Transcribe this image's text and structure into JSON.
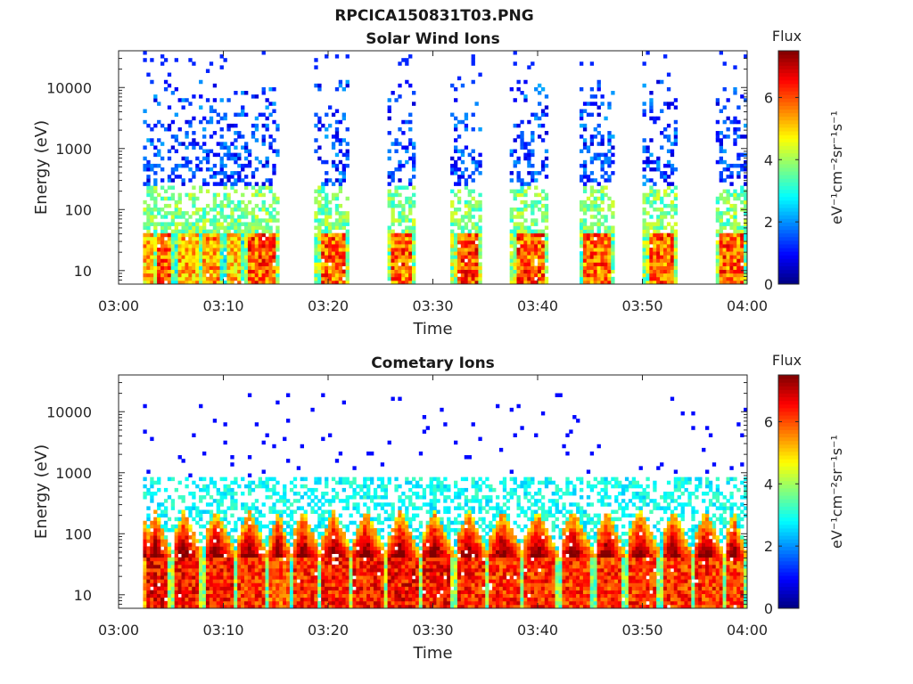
{
  "figure": {
    "title": "RPCICA150831T03.PNG"
  },
  "chart_data": [
    {
      "type": "heatmap",
      "title": "Solar Wind Ions",
      "xlabel": "Time",
      "ylabel": "Energy (eV)",
      "x_range": [
        "03:00",
        "04:00"
      ],
      "xticks": [
        "03:00",
        "03:10",
        "03:20",
        "03:30",
        "03:40",
        "03:50",
        "04:00"
      ],
      "y_scale": "log",
      "y_range": [
        6,
        40000
      ],
      "yticks": [
        10,
        100,
        1000,
        10000
      ],
      "ytick_labels": [
        "10",
        "100",
        "1000",
        "10000"
      ],
      "colorbar": {
        "title": "Flux",
        "label": "eV⁻¹cm⁻²sr⁻¹s⁻¹",
        "range": [
          0,
          7.5
        ],
        "ticks": [
          0,
          2,
          4,
          6
        ],
        "colormap": "jet"
      },
      "data_gaps_minutes": [
        [
          15.2,
          18.8
        ],
        [
          22.0,
          25.5
        ],
        [
          28.4,
          31.8
        ],
        [
          34.8,
          37.4
        ],
        [
          41.0,
          44.0
        ],
        [
          47.3,
          50.0
        ],
        [
          53.5,
          57.0
        ]
      ],
      "bursts": [
        {
          "t": [
            3.5,
            5.3
          ],
          "peak": 6.8
        },
        {
          "t": [
            5.3,
            7.8
          ],
          "peak": 6.2
        },
        {
          "t": [
            7.8,
            10.0
          ],
          "peak": 6.4
        },
        {
          "t": [
            10.0,
            12.0
          ],
          "peak": 6.0
        },
        {
          "t": [
            12.0,
            15.2
          ],
          "peak": 7.0
        },
        {
          "t": [
            18.8,
            22.0
          ],
          "peak": 6.9
        },
        {
          "t": [
            25.5,
            28.4
          ],
          "peak": 6.9
        },
        {
          "t": [
            31.8,
            34.8
          ],
          "peak": 7.1
        },
        {
          "t": [
            37.4,
            41.0
          ],
          "peak": 7.0
        },
        {
          "t": [
            44.0,
            47.3
          ],
          "peak": 6.8
        },
        {
          "t": [
            50.0,
            53.5
          ],
          "peak": 6.9
        },
        {
          "t": [
            57.0,
            60.0
          ],
          "peak": 6.9
        }
      ]
    },
    {
      "type": "heatmap",
      "title": "Cometary Ions",
      "xlabel": "Time",
      "ylabel": "Energy (eV)",
      "x_range": [
        "03:00",
        "04:00"
      ],
      "xticks": [
        "03:00",
        "03:10",
        "03:20",
        "03:30",
        "03:40",
        "03:50",
        "04:00"
      ],
      "y_scale": "log",
      "y_range": [
        6,
        40000
      ],
      "yticks": [
        10,
        100,
        1000,
        10000
      ],
      "ytick_labels": [
        "10",
        "100",
        "1000",
        "10000"
      ],
      "colorbar": {
        "title": "Flux",
        "label": "eV⁻¹cm⁻²sr⁻¹s⁻¹",
        "range": [
          0,
          7.5
        ],
        "ticks": [
          0,
          2,
          4,
          6
        ],
        "colormap": "jet"
      },
      "data_gaps_minutes": [],
      "bursts": [
        {
          "t": [
            2.6,
            5.2
          ],
          "peak": 7.4
        },
        {
          "t": [
            5.2,
            8.2
          ],
          "peak": 7.2
        },
        {
          "t": [
            8.2,
            11.4
          ],
          "peak": 7.2
        },
        {
          "t": [
            11.4,
            14.5
          ],
          "peak": 7.0
        },
        {
          "t": [
            14.5,
            16.6
          ],
          "peak": 6.6
        },
        {
          "t": [
            16.6,
            19.5
          ],
          "peak": 7.0
        },
        {
          "t": [
            19.5,
            22.5
          ],
          "peak": 7.2
        },
        {
          "t": [
            22.5,
            25.8
          ],
          "peak": 7.2
        },
        {
          "t": [
            25.8,
            29.0
          ],
          "peak": 7.3
        },
        {
          "t": [
            29.0,
            32.3
          ],
          "peak": 7.3
        },
        {
          "t": [
            32.3,
            35.5
          ],
          "peak": 7.1
        },
        {
          "t": [
            35.5,
            38.8
          ],
          "peak": 7.0
        },
        {
          "t": [
            38.8,
            42.2
          ],
          "peak": 7.0
        },
        {
          "t": [
            42.2,
            45.6
          ],
          "peak": 7.0
        },
        {
          "t": [
            45.6,
            48.6
          ],
          "peak": 7.0
        },
        {
          "t": [
            48.6,
            51.9
          ],
          "peak": 7.0
        },
        {
          "t": [
            51.9,
            55.0
          ],
          "peak": 7.0
        },
        {
          "t": [
            55.0,
            58.0
          ],
          "peak": 7.0
        },
        {
          "t": [
            58.0,
            60.0
          ],
          "peak": 6.9
        }
      ]
    }
  ]
}
